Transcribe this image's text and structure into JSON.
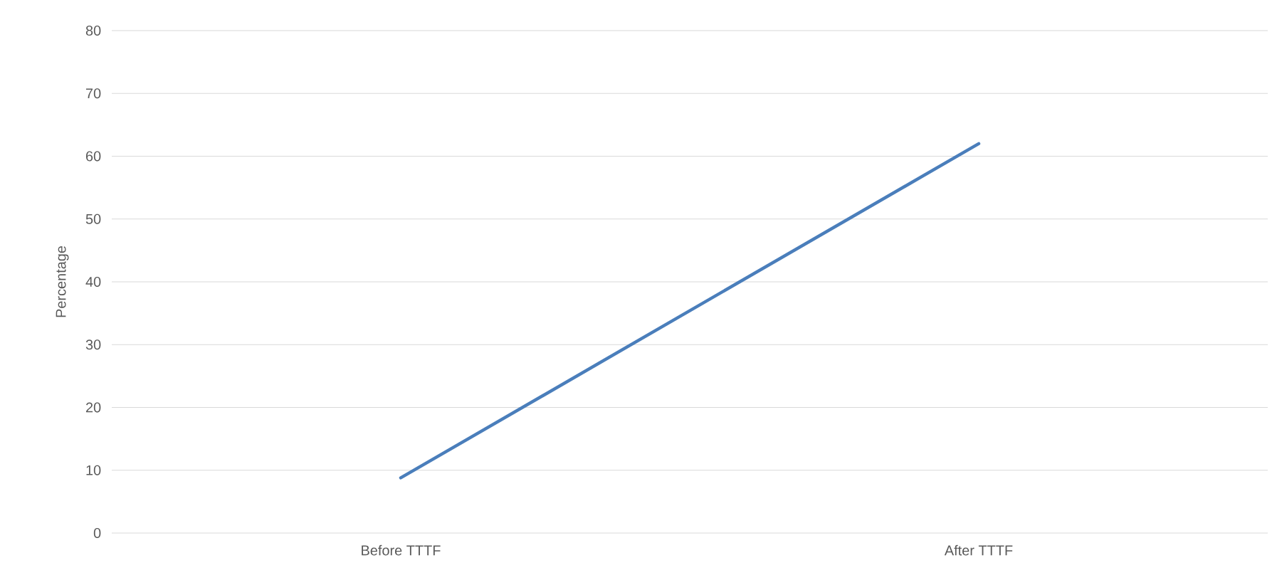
{
  "chart_data": {
    "type": "line",
    "ylabel": "Percentage",
    "categories": [
      "Before TTTF",
      "After TTTF"
    ],
    "series": [
      {
        "color": "#4a7ebb",
        "values": [
          8.8,
          62
        ]
      }
    ],
    "ylim": [
      0,
      80
    ],
    "yticks": [
      0,
      10,
      20,
      30,
      40,
      50,
      60,
      70,
      80
    ],
    "grid": "y"
  }
}
